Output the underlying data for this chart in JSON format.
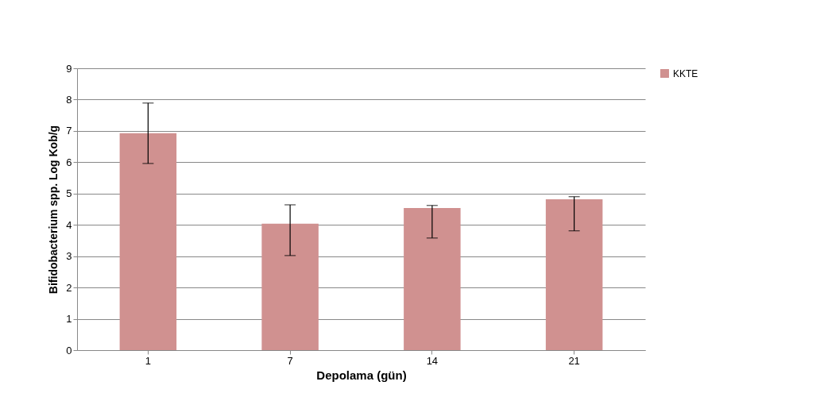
{
  "chart_data": {
    "type": "bar",
    "xlabel": "Depolama (gün)",
    "ylabel": "Bifidobacterium  spp. Log Kob/g",
    "categories": [
      "1",
      "7",
      "14",
      "21"
    ],
    "series": [
      {
        "name": "KKTE",
        "color": "#d09190",
        "values": [
          6.93,
          4.04,
          4.54,
          4.82
        ],
        "errors": [
          [
            5.96,
            7.89
          ],
          [
            3.02,
            4.64
          ],
          [
            3.58,
            4.62
          ],
          [
            3.81,
            4.9
          ]
        ]
      }
    ],
    "ylim": [
      0,
      9
    ],
    "yticks": [
      0,
      1,
      2,
      3,
      4,
      5,
      6,
      7,
      8,
      9
    ],
    "grid": "y",
    "legend": "right"
  }
}
